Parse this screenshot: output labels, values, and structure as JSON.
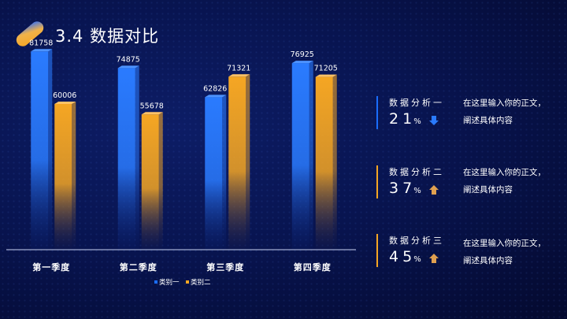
{
  "header": {
    "title": "3.4 数据对比"
  },
  "chart_data": {
    "type": "bar",
    "categories": [
      "第一季度",
      "第二季度",
      "第三季度",
      "第四季度"
    ],
    "series": [
      {
        "name": "类别一",
        "values": [
          81758,
          74875,
          62826,
          76925
        ],
        "color": "#1a6dff"
      },
      {
        "name": "类别二",
        "values": [
          60006,
          55678,
          71321,
          71205
        ],
        "color": "#f5a623"
      }
    ],
    "ylim": [
      0,
      90000
    ],
    "legend": "bottom"
  },
  "stats": [
    {
      "label": "数据分析一",
      "value": "21",
      "unit": "%",
      "direction": "down",
      "icon": "arrow-down-icon",
      "accent": "#1a6dff",
      "desc": "在这里输入你的正文，阐述具体内容"
    },
    {
      "label": "数据分析二",
      "value": "37",
      "unit": "%",
      "direction": "up",
      "icon": "arrow-up-icon",
      "accent": "#f5a623",
      "desc": "在这里输入你的正文，阐述具体内容"
    },
    {
      "label": "数据分析三",
      "value": "45",
      "unit": "%",
      "direction": "up",
      "icon": "arrow-up-icon",
      "accent": "#f5a623",
      "desc": "在这里输入你的正文，阐述具体内容"
    }
  ]
}
